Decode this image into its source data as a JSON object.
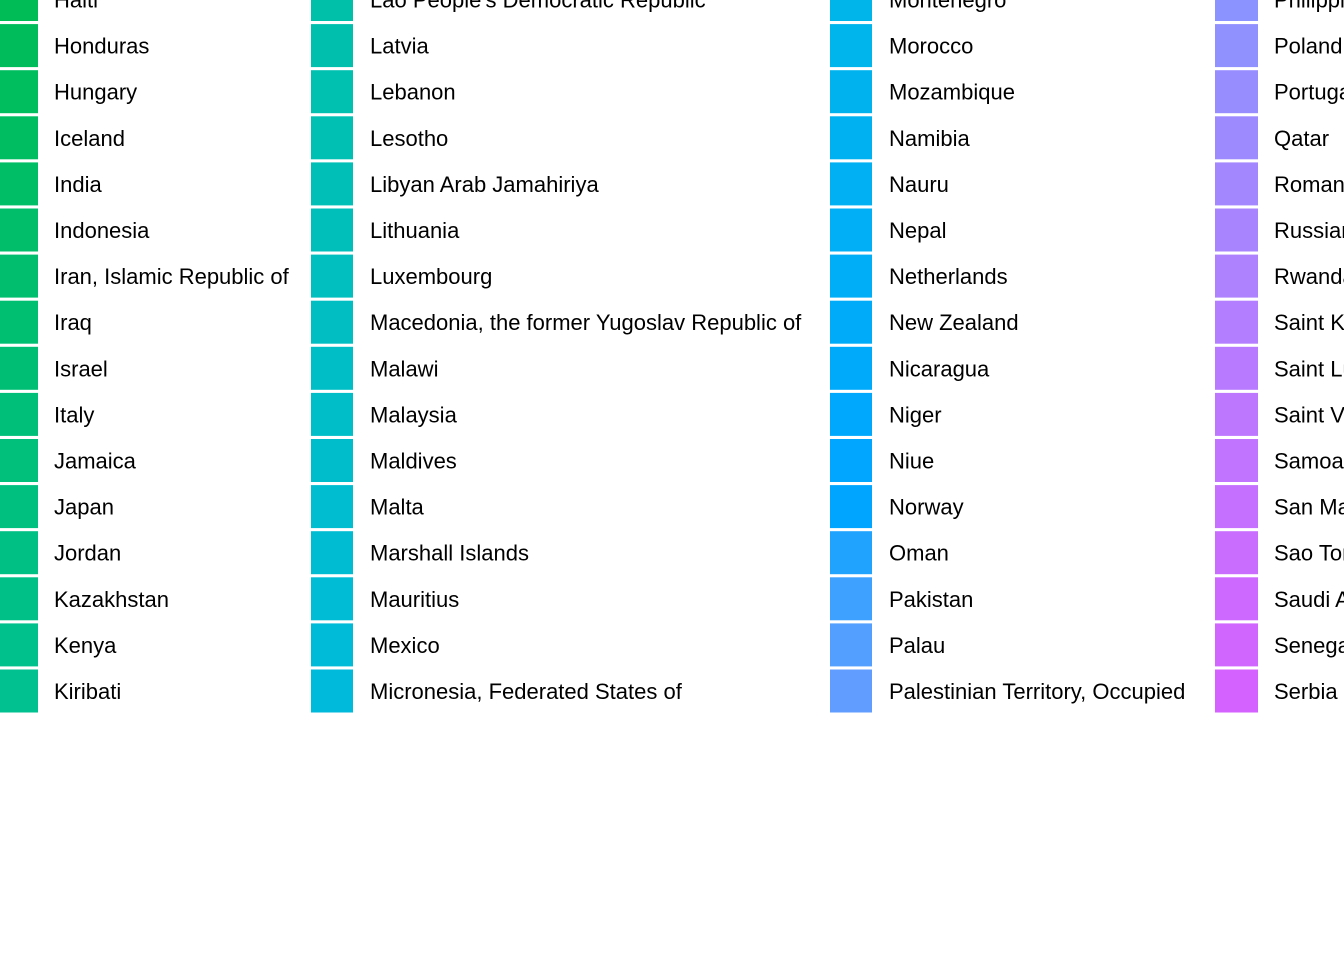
{
  "chart_data": {
    "type": "legend",
    "legend": {
      "columns": [
        {
          "entries": [
            {
              "label": "Haiti",
              "color": "#00BC56"
            },
            {
              "label": "Honduras",
              "color": "#00BC5A"
            },
            {
              "label": "Hungary",
              "color": "#00BD5E"
            },
            {
              "label": "Iceland",
              "color": "#00BD62"
            },
            {
              "label": "India",
              "color": "#00BE66"
            },
            {
              "label": "Indonesia",
              "color": "#00BE69"
            },
            {
              "label": "Iran, Islamic Republic of",
              "color": "#00BE6D"
            },
            {
              "label": "Iraq",
              "color": "#00BF71"
            },
            {
              "label": "Israel",
              "color": "#00BF74"
            },
            {
              "label": "Italy",
              "color": "#00BF78"
            },
            {
              "label": "Jamaica",
              "color": "#00C07C"
            },
            {
              "label": "Japan",
              "color": "#00C080"
            },
            {
              "label": "Jordan",
              "color": "#00C083"
            },
            {
              "label": "Kazakhstan",
              "color": "#00C087"
            },
            {
              "label": "Kenya",
              "color": "#00C08B"
            },
            {
              "label": "Kiribati",
              "color": "#00C18F"
            }
          ]
        },
        {
          "entries": [
            {
              "label": "Lao People's Democratic Republic",
              "color": "#00C0A9"
            },
            {
              "label": "Latvia",
              "color": "#00C0AD"
            },
            {
              "label": "Lebanon",
              "color": "#00C0B0"
            },
            {
              "label": "Lesotho",
              "color": "#00C0B4"
            },
            {
              "label": "Libyan Arab Jamahiriya",
              "color": "#00BFB7"
            },
            {
              "label": "Lithuania",
              "color": "#00BFBB"
            },
            {
              "label": "Luxembourg",
              "color": "#00BFBE"
            },
            {
              "label": "Macedonia, the former Yugoslav Republic of",
              "color": "#00BEC2"
            },
            {
              "label": "Malawi",
              "color": "#00BEC5"
            },
            {
              "label": "Malaysia",
              "color": "#00BEC8"
            },
            {
              "label": "Maldives",
              "color": "#00BDCC"
            },
            {
              "label": "Malta",
              "color": "#00BDCF"
            },
            {
              "label": "Marshall Islands",
              "color": "#00BCD2"
            },
            {
              "label": "Mauritius",
              "color": "#00BCD5"
            },
            {
              "label": "Mexico",
              "color": "#00BBD8"
            },
            {
              "label": "Micronesia, Federated States of",
              "color": "#00BADB"
            }
          ]
        },
        {
          "entries": [
            {
              "label": "Montenegro",
              "color": "#00B5EA"
            },
            {
              "label": "Morocco",
              "color": "#00B4EC"
            },
            {
              "label": "Mozambique",
              "color": "#00B3EF"
            },
            {
              "label": "Namibia",
              "color": "#00B1F1"
            },
            {
              "label": "Nauru",
              "color": "#00B0F3"
            },
            {
              "label": "Nepal",
              "color": "#00AFF5"
            },
            {
              "label": "Netherlands",
              "color": "#00ADF7"
            },
            {
              "label": "New Zealand",
              "color": "#00ACF9"
            },
            {
              "label": "Nicaragua",
              "color": "#00AAFB"
            },
            {
              "label": "Niger",
              "color": "#00A8FD"
            },
            {
              "label": "Niue",
              "color": "#00A6FF"
            },
            {
              "label": "Norway",
              "color": "#00A5FF"
            },
            {
              "label": "Oman",
              "color": "#1FA3FF"
            },
            {
              "label": "Pakistan",
              "color": "#3FA1FF"
            },
            {
              "label": "Palau",
              "color": "#529FFF"
            },
            {
              "label": "Palestinian Territory, Occupied",
              "color": "#619CFF"
            }
          ]
        },
        {
          "entries": [
            {
              "label": "Philippines",
              "color": "#8A93FF"
            },
            {
              "label": "Poland",
              "color": "#9190FF"
            },
            {
              "label": "Portugal",
              "color": "#978DFF"
            },
            {
              "label": "Qatar",
              "color": "#9D8AFF"
            },
            {
              "label": "Romania",
              "color": "#A387FF"
            },
            {
              "label": "Russian Federation",
              "color": "#A984FF"
            },
            {
              "label": "Rwanda",
              "color": "#AE81FF"
            },
            {
              "label": "Saint Kitts and Nevis",
              "color": "#B37EFF"
            },
            {
              "label": "Saint Lucia",
              "color": "#B87AFF"
            },
            {
              "label": "Saint Vincent and the Grenadines",
              "color": "#BD77FF"
            },
            {
              "label": "Samoa",
              "color": "#C174FF"
            },
            {
              "label": "San Marino",
              "color": "#C570FF"
            },
            {
              "label": "Sao Tome and Principe",
              "color": "#C96DFF"
            },
            {
              "label": "Saudi Arabia",
              "color": "#CD69FF"
            },
            {
              "label": "Senegal",
              "color": "#D166FF"
            },
            {
              "label": "Serbia",
              "color": "#D462FF"
            }
          ]
        }
      ]
    }
  }
}
